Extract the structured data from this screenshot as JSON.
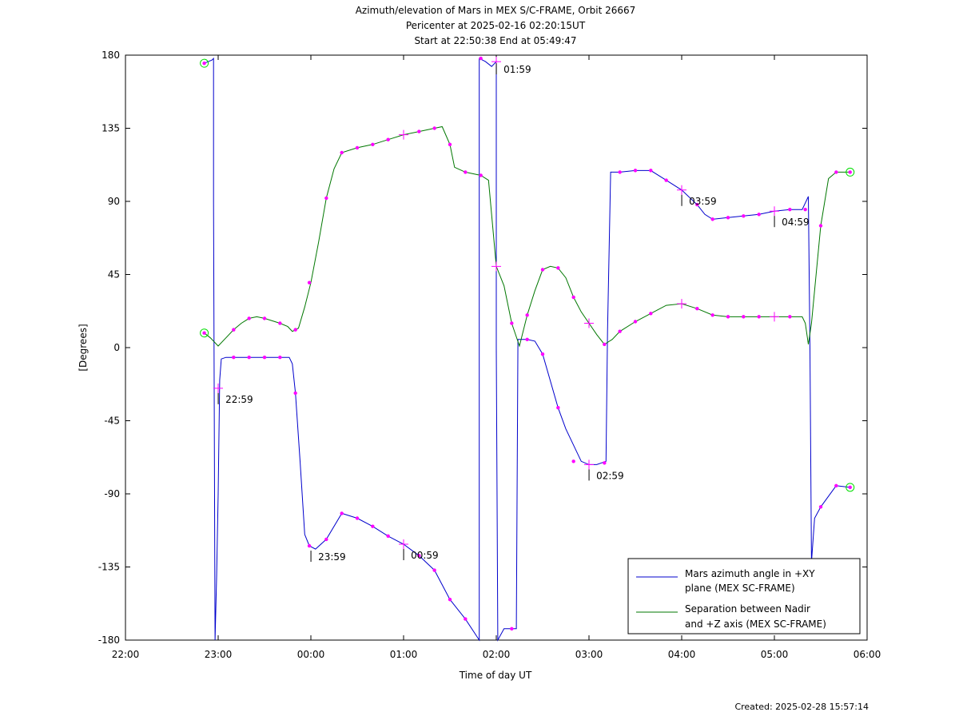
{
  "chart_data": {
    "type": "line",
    "title_lines": [
      "Azimuth/elevation of Mars in MEX S/C-FRAME,  Orbit 26667",
      "Pericenter at 2025-02-16 02:20:15UT",
      "Start at 22:50:38 End at 05:49:47"
    ],
    "xlabel": "Time of day UT",
    "ylabel": "[Degrees]",
    "xlim": [
      "22:00",
      "06:00"
    ],
    "ylim": [
      -180,
      180
    ],
    "x_ticks": [
      "22:00",
      "23:00",
      "00:00",
      "01:00",
      "02:00",
      "03:00",
      "04:00",
      "05:00",
      "06:00"
    ],
    "y_ticks": [
      180,
      135,
      90,
      45,
      0,
      -45,
      -90,
      -135,
      -180
    ],
    "legend_position": "bottom-right",
    "created_label": "Created: 2025-02-28 15:57:14",
    "colors": {
      "azimuth": "#0000cc",
      "separation": "#007700",
      "marker": "#ff00ff",
      "endpoint": "#00dd00"
    },
    "series": [
      {
        "name": "Mars azimuth angle in +XY plane (MEX SC-FRAME)",
        "legend_lines": [
          "Mars azimuth angle in +XY",
          "plane (MEX SC-FRAME)"
        ],
        "points": [
          [
            "22:51",
            175
          ],
          [
            "22:56",
            177
          ],
          [
            "22:57",
            178
          ],
          [
            "22:57",
            90
          ],
          [
            "22:58",
            -180
          ],
          [
            "22:59",
            -140
          ],
          [
            "23:00",
            -90
          ],
          [
            "23:01",
            -20
          ],
          [
            "23:02",
            -7
          ],
          [
            "23:05",
            -6
          ],
          [
            "23:20",
            -6
          ],
          [
            "23:40",
            -6
          ],
          [
            "23:46",
            -6
          ],
          [
            "23:48",
            -10
          ],
          [
            "23:50",
            -28
          ],
          [
            "23:53",
            -70
          ],
          [
            "23:56",
            -115
          ],
          [
            "23:59",
            -122
          ],
          [
            "00:03",
            -124
          ],
          [
            "00:10",
            -118
          ],
          [
            "00:20",
            -102
          ],
          [
            "00:30",
            -105
          ],
          [
            "00:40",
            -110
          ],
          [
            "00:50",
            -116
          ],
          [
            "01:00",
            -121
          ],
          [
            "01:10",
            -128
          ],
          [
            "01:20",
            -137
          ],
          [
            "01:30",
            -155
          ],
          [
            "01:40",
            -167
          ],
          [
            "01:49",
            -180
          ],
          [
            "01:49",
            178
          ],
          [
            "01:53",
            176
          ],
          [
            "01:57",
            173
          ],
          [
            "02:00",
            176
          ],
          [
            "02:00",
            0
          ],
          [
            "02:01",
            -180
          ],
          [
            "02:05",
            -173
          ],
          [
            "02:10",
            -173
          ],
          [
            "02:13",
            -173
          ],
          [
            "02:14",
            5
          ],
          [
            "02:20",
            5
          ],
          [
            "02:25",
            4
          ],
          [
            "02:30",
            -4
          ],
          [
            "02:40",
            -37
          ],
          [
            "02:45",
            -50
          ],
          [
            "02:55",
            -70
          ],
          [
            "03:00",
            -72
          ],
          [
            "03:05",
            -72
          ],
          [
            "03:11",
            -70
          ],
          [
            "03:12",
            10
          ],
          [
            "03:14",
            108
          ],
          [
            "03:20",
            108
          ],
          [
            "03:30",
            109
          ],
          [
            "03:40",
            109
          ],
          [
            "03:50",
            103
          ],
          [
            "04:00",
            97
          ],
          [
            "04:10",
            88
          ],
          [
            "04:15",
            82
          ],
          [
            "04:20",
            79
          ],
          [
            "04:30",
            80
          ],
          [
            "04:40",
            81
          ],
          [
            "04:50",
            82
          ],
          [
            "05:00",
            84
          ],
          [
            "05:10",
            85
          ],
          [
            "05:18",
            85
          ],
          [
            "05:22",
            93
          ],
          [
            "05:23",
            0
          ],
          [
            "05:24",
            -132
          ],
          [
            "05:26",
            -105
          ],
          [
            "05:30",
            -98
          ],
          [
            "05:40",
            -85
          ],
          [
            "05:49",
            -86
          ]
        ],
        "markers": [
          [
            "23:00",
            -25
          ],
          [
            "23:10",
            -6
          ],
          [
            "23:20",
            -6
          ],
          [
            "23:30",
            -6
          ],
          [
            "23:40",
            -6
          ],
          [
            "23:50",
            -28
          ],
          [
            "23:59",
            -122
          ],
          [
            "00:10",
            -118
          ],
          [
            "00:20",
            -102
          ],
          [
            "00:30",
            -105
          ],
          [
            "00:40",
            -110
          ],
          [
            "00:50",
            -116
          ],
          [
            "01:00",
            -121
          ],
          [
            "01:10",
            -128
          ],
          [
            "01:20",
            -137
          ],
          [
            "01:30",
            -155
          ],
          [
            "01:40",
            -167
          ],
          [
            "01:50",
            178
          ],
          [
            "02:00",
            176
          ],
          [
            "02:10",
            -173
          ],
          [
            "02:20",
            5
          ],
          [
            "02:30",
            -4
          ],
          [
            "02:40",
            -37
          ],
          [
            "02:50",
            -70
          ],
          [
            "03:00",
            -72
          ],
          [
            "03:10",
            -71
          ],
          [
            "03:20",
            108
          ],
          [
            "03:30",
            109
          ],
          [
            "03:40",
            109
          ],
          [
            "03:50",
            103
          ],
          [
            "04:00",
            97
          ],
          [
            "04:10",
            88
          ],
          [
            "04:20",
            79
          ],
          [
            "04:30",
            80
          ],
          [
            "04:40",
            81
          ],
          [
            "04:50",
            82
          ],
          [
            "05:00",
            84
          ],
          [
            "05:10",
            85
          ],
          [
            "05:20",
            85
          ],
          [
            "05:30",
            -98
          ],
          [
            "05:40",
            -85
          ]
        ],
        "start": [
          "22:51",
          175
        ],
        "end": [
          "05:49",
          -86
        ]
      },
      {
        "name": "Separation between Nadir and +Z axis (MEX SC-FRAME)",
        "legend_lines": [
          "Separation between Nadir",
          "and +Z axis (MEX SC-FRAME)"
        ],
        "points": [
          [
            "22:51",
            9
          ],
          [
            "22:55",
            6
          ],
          [
            "23:00",
            1
          ],
          [
            "23:05",
            6
          ],
          [
            "23:10",
            11
          ],
          [
            "23:15",
            15
          ],
          [
            "23:20",
            18
          ],
          [
            "23:25",
            19
          ],
          [
            "23:30",
            18
          ],
          [
            "23:40",
            15
          ],
          [
            "23:45",
            13
          ],
          [
            "23:48",
            10
          ],
          [
            "23:52",
            12
          ],
          [
            "23:56",
            25
          ],
          [
            "00:00",
            40
          ],
          [
            "00:05",
            65
          ],
          [
            "00:10",
            92
          ],
          [
            "00:15",
            110
          ],
          [
            "00:20",
            120
          ],
          [
            "00:30",
            123
          ],
          [
            "00:40",
            125
          ],
          [
            "00:50",
            128
          ],
          [
            "01:00",
            131
          ],
          [
            "01:10",
            133
          ],
          [
            "01:20",
            135
          ],
          [
            "01:25",
            136
          ],
          [
            "01:30",
            125
          ],
          [
            "01:33",
            111
          ],
          [
            "01:40",
            108
          ],
          [
            "01:50",
            106
          ],
          [
            "01:55",
            103
          ],
          [
            "02:00",
            50
          ],
          [
            "02:05",
            38
          ],
          [
            "02:10",
            15
          ],
          [
            "02:15",
            1
          ],
          [
            "02:20",
            20
          ],
          [
            "02:25",
            35
          ],
          [
            "02:30",
            48
          ],
          [
            "02:35",
            50
          ],
          [
            "02:40",
            49
          ],
          [
            "02:45",
            43
          ],
          [
            "02:50",
            31
          ],
          [
            "02:55",
            22
          ],
          [
            "03:00",
            15
          ],
          [
            "03:05",
            8
          ],
          [
            "03:10",
            2
          ],
          [
            "03:15",
            5
          ],
          [
            "03:20",
            10
          ],
          [
            "03:30",
            16
          ],
          [
            "03:40",
            21
          ],
          [
            "03:50",
            26
          ],
          [
            "04:00",
            27
          ],
          [
            "04:10",
            24
          ],
          [
            "04:20",
            20
          ],
          [
            "04:30",
            19
          ],
          [
            "04:40",
            19
          ],
          [
            "04:50",
            19
          ],
          [
            "05:00",
            19
          ],
          [
            "05:10",
            19
          ],
          [
            "05:18",
            19
          ],
          [
            "05:20",
            15
          ],
          [
            "05:22",
            2
          ],
          [
            "05:24",
            15
          ],
          [
            "05:27",
            45
          ],
          [
            "05:30",
            75
          ],
          [
            "05:35",
            104
          ],
          [
            "05:40",
            108
          ],
          [
            "05:49",
            108
          ]
        ],
        "markers": [
          [
            "23:10",
            11
          ],
          [
            "23:20",
            18
          ],
          [
            "23:30",
            18
          ],
          [
            "23:40",
            15
          ],
          [
            "23:50",
            11
          ],
          [
            "23:59",
            40
          ],
          [
            "00:10",
            92
          ],
          [
            "00:20",
            120
          ],
          [
            "00:30",
            123
          ],
          [
            "00:40",
            125
          ],
          [
            "00:50",
            128
          ],
          [
            "01:00",
            131
          ],
          [
            "01:10",
            133
          ],
          [
            "01:20",
            135
          ],
          [
            "01:30",
            125
          ],
          [
            "01:40",
            108
          ],
          [
            "01:50",
            106
          ],
          [
            "02:00",
            50
          ],
          [
            "02:10",
            15
          ],
          [
            "02:20",
            20
          ],
          [
            "02:30",
            48
          ],
          [
            "02:40",
            49
          ],
          [
            "02:50",
            31
          ],
          [
            "03:00",
            15
          ],
          [
            "03:10",
            2
          ],
          [
            "03:20",
            10
          ],
          [
            "03:30",
            16
          ],
          [
            "03:40",
            21
          ],
          [
            "04:00",
            27
          ],
          [
            "04:10",
            24
          ],
          [
            "04:20",
            20
          ],
          [
            "04:30",
            19
          ],
          [
            "04:40",
            19
          ],
          [
            "04:50",
            19
          ],
          [
            "05:00",
            19
          ],
          [
            "05:10",
            19
          ],
          [
            "05:30",
            75
          ],
          [
            "05:40",
            108
          ]
        ],
        "start": [
          "22:51",
          9
        ],
        "end": [
          "05:49",
          108
        ]
      }
    ],
    "hour_marks": [
      {
        "label": "22:59",
        "x": "22:59",
        "y": -25,
        "series": 0
      },
      {
        "label": "23:59",
        "x": "23:59",
        "y": -122,
        "series": 0
      },
      {
        "label": "00:59",
        "x": "00:59",
        "y": -121,
        "series": 0
      },
      {
        "label": "01:59",
        "x": "01:59",
        "y": 178,
        "series": 0
      },
      {
        "label": "02:59",
        "x": "02:59",
        "y": -72,
        "series": 0
      },
      {
        "label": "03:59",
        "x": "03:59",
        "y": 97,
        "series": 0
      },
      {
        "label": "04:59",
        "x": "04:59",
        "y": 84,
        "series": 0
      }
    ]
  }
}
